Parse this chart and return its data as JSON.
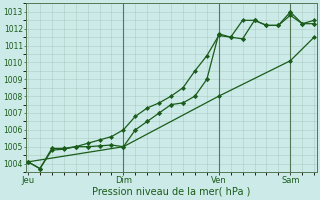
{
  "xlabel": "Pression niveau de la mer( hPa )",
  "bg_color": "#cceae8",
  "grid_color": "#99bbaa",
  "line_color": "#1a5c1a",
  "vline_color": "#557755",
  "ylim": [
    1003.5,
    1013.5
  ],
  "yticks": [
    1004,
    1005,
    1006,
    1007,
    1008,
    1009,
    1010,
    1011,
    1012,
    1013
  ],
  "xlim": [
    -0.1,
    12.1
  ],
  "day_labels": [
    "Jeu",
    "Dim",
    "Ven",
    "Sam"
  ],
  "day_positions": [
    0,
    4,
    8,
    11
  ],
  "vline_positions": [
    4,
    8,
    11
  ],
  "series1_x": [
    0,
    0.5,
    1,
    1.5,
    2,
    2.5,
    3,
    3.5,
    4,
    4.5,
    5,
    5.5,
    6,
    6.5,
    7,
    7.5,
    8,
    8.5,
    9,
    9.5,
    10,
    10.5,
    11,
    11.5,
    12
  ],
  "series1_y": [
    1004.1,
    1003.7,
    1004.9,
    1004.9,
    1005.0,
    1005.0,
    1005.05,
    1005.1,
    1005.0,
    1006.0,
    1006.5,
    1007.0,
    1007.5,
    1007.6,
    1008.0,
    1009.0,
    1011.7,
    1011.5,
    1011.4,
    1012.5,
    1012.2,
    1012.2,
    1013.0,
    1012.3,
    1012.3
  ],
  "series2_x": [
    0,
    0.5,
    1,
    1.5,
    2,
    2.5,
    3,
    3.5,
    4,
    4.5,
    5,
    5.5,
    6,
    6.5,
    7,
    7.5,
    8,
    8.5,
    9,
    9.5,
    10,
    10.5,
    11,
    11.5,
    12
  ],
  "series2_y": [
    1004.1,
    1003.7,
    1004.8,
    1004.85,
    1005.0,
    1005.2,
    1005.4,
    1005.6,
    1006.0,
    1006.8,
    1007.3,
    1007.6,
    1008.0,
    1008.5,
    1009.5,
    1010.4,
    1011.6,
    1011.5,
    1012.5,
    1012.5,
    1012.2,
    1012.2,
    1012.8,
    1012.3,
    1012.5
  ],
  "series3_x": [
    0,
    4,
    8,
    11,
    12
  ],
  "series3_y": [
    1004.1,
    1005.0,
    1008.0,
    1010.1,
    1011.5
  ]
}
